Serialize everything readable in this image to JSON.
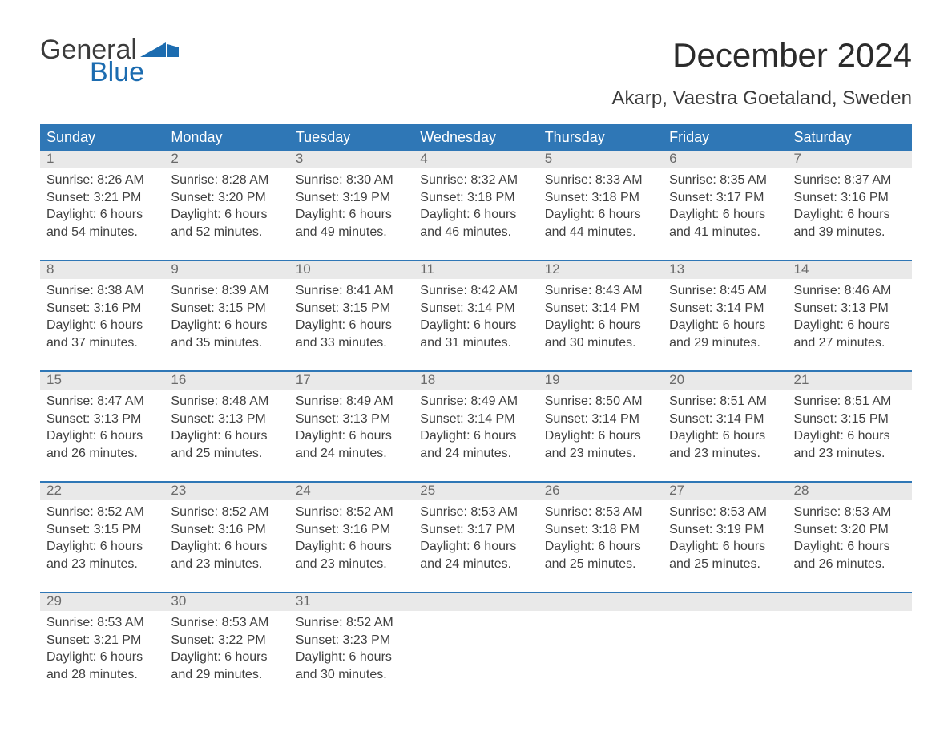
{
  "brand": {
    "word1": "General",
    "word2": "Blue",
    "brand_accent": "#1c6cb0",
    "brand_text": "#3b3b3b"
  },
  "title": {
    "month": "December 2024",
    "location": "Akarp, Vaestra Goetaland, Sweden"
  },
  "colors": {
    "header_bg": "#2f77b6",
    "header_text": "#ffffff",
    "daynum_bg": "#e9e9e9",
    "daynum_text": "#6a6a6a",
    "week_border": "#2f77b6",
    "body_text": "#404040",
    "page_bg": "#ffffff"
  },
  "typography": {
    "title_fontsize": 42,
    "location_fontsize": 24,
    "header_fontsize": 18,
    "cell_fontsize": 16
  },
  "dayNames": [
    "Sunday",
    "Monday",
    "Tuesday",
    "Wednesday",
    "Thursday",
    "Friday",
    "Saturday"
  ],
  "weeks": [
    {
      "nums": [
        "1",
        "2",
        "3",
        "4",
        "5",
        "6",
        "7"
      ],
      "cells": [
        {
          "sunrise": "8:26 AM",
          "sunset": "3:21 PM",
          "daylight": "6 hours and 54 minutes."
        },
        {
          "sunrise": "8:28 AM",
          "sunset": "3:20 PM",
          "daylight": "6 hours and 52 minutes."
        },
        {
          "sunrise": "8:30 AM",
          "sunset": "3:19 PM",
          "daylight": "6 hours and 49 minutes."
        },
        {
          "sunrise": "8:32 AM",
          "sunset": "3:18 PM",
          "daylight": "6 hours and 46 minutes."
        },
        {
          "sunrise": "8:33 AM",
          "sunset": "3:18 PM",
          "daylight": "6 hours and 44 minutes."
        },
        {
          "sunrise": "8:35 AM",
          "sunset": "3:17 PM",
          "daylight": "6 hours and 41 minutes."
        },
        {
          "sunrise": "8:37 AM",
          "sunset": "3:16 PM",
          "daylight": "6 hours and 39 minutes."
        }
      ]
    },
    {
      "nums": [
        "8",
        "9",
        "10",
        "11",
        "12",
        "13",
        "14"
      ],
      "cells": [
        {
          "sunrise": "8:38 AM",
          "sunset": "3:16 PM",
          "daylight": "6 hours and 37 minutes."
        },
        {
          "sunrise": "8:39 AM",
          "sunset": "3:15 PM",
          "daylight": "6 hours and 35 minutes."
        },
        {
          "sunrise": "8:41 AM",
          "sunset": "3:15 PM",
          "daylight": "6 hours and 33 minutes."
        },
        {
          "sunrise": "8:42 AM",
          "sunset": "3:14 PM",
          "daylight": "6 hours and 31 minutes."
        },
        {
          "sunrise": "8:43 AM",
          "sunset": "3:14 PM",
          "daylight": "6 hours and 30 minutes."
        },
        {
          "sunrise": "8:45 AM",
          "sunset": "3:14 PM",
          "daylight": "6 hours and 29 minutes."
        },
        {
          "sunrise": "8:46 AM",
          "sunset": "3:13 PM",
          "daylight": "6 hours and 27 minutes."
        }
      ]
    },
    {
      "nums": [
        "15",
        "16",
        "17",
        "18",
        "19",
        "20",
        "21"
      ],
      "cells": [
        {
          "sunrise": "8:47 AM",
          "sunset": "3:13 PM",
          "daylight": "6 hours and 26 minutes."
        },
        {
          "sunrise": "8:48 AM",
          "sunset": "3:13 PM",
          "daylight": "6 hours and 25 minutes."
        },
        {
          "sunrise": "8:49 AM",
          "sunset": "3:13 PM",
          "daylight": "6 hours and 24 minutes."
        },
        {
          "sunrise": "8:49 AM",
          "sunset": "3:14 PM",
          "daylight": "6 hours and 24 minutes."
        },
        {
          "sunrise": "8:50 AM",
          "sunset": "3:14 PM",
          "daylight": "6 hours and 23 minutes."
        },
        {
          "sunrise": "8:51 AM",
          "sunset": "3:14 PM",
          "daylight": "6 hours and 23 minutes."
        },
        {
          "sunrise": "8:51 AM",
          "sunset": "3:15 PM",
          "daylight": "6 hours and 23 minutes."
        }
      ]
    },
    {
      "nums": [
        "22",
        "23",
        "24",
        "25",
        "26",
        "27",
        "28"
      ],
      "cells": [
        {
          "sunrise": "8:52 AM",
          "sunset": "3:15 PM",
          "daylight": "6 hours and 23 minutes."
        },
        {
          "sunrise": "8:52 AM",
          "sunset": "3:16 PM",
          "daylight": "6 hours and 23 minutes."
        },
        {
          "sunrise": "8:52 AM",
          "sunset": "3:16 PM",
          "daylight": "6 hours and 23 minutes."
        },
        {
          "sunrise": "8:53 AM",
          "sunset": "3:17 PM",
          "daylight": "6 hours and 24 minutes."
        },
        {
          "sunrise": "8:53 AM",
          "sunset": "3:18 PM",
          "daylight": "6 hours and 25 minutes."
        },
        {
          "sunrise": "8:53 AM",
          "sunset": "3:19 PM",
          "daylight": "6 hours and 25 minutes."
        },
        {
          "sunrise": "8:53 AM",
          "sunset": "3:20 PM",
          "daylight": "6 hours and 26 minutes."
        }
      ]
    },
    {
      "nums": [
        "29",
        "30",
        "31",
        "",
        "",
        "",
        ""
      ],
      "cells": [
        {
          "sunrise": "8:53 AM",
          "sunset": "3:21 PM",
          "daylight": "6 hours and 28 minutes."
        },
        {
          "sunrise": "8:53 AM",
          "sunset": "3:22 PM",
          "daylight": "6 hours and 29 minutes."
        },
        {
          "sunrise": "8:52 AM",
          "sunset": "3:23 PM",
          "daylight": "6 hours and 30 minutes."
        },
        null,
        null,
        null,
        null
      ]
    }
  ],
  "labels": {
    "sunrise": "Sunrise: ",
    "sunset": "Sunset: ",
    "daylight": "Daylight: "
  }
}
